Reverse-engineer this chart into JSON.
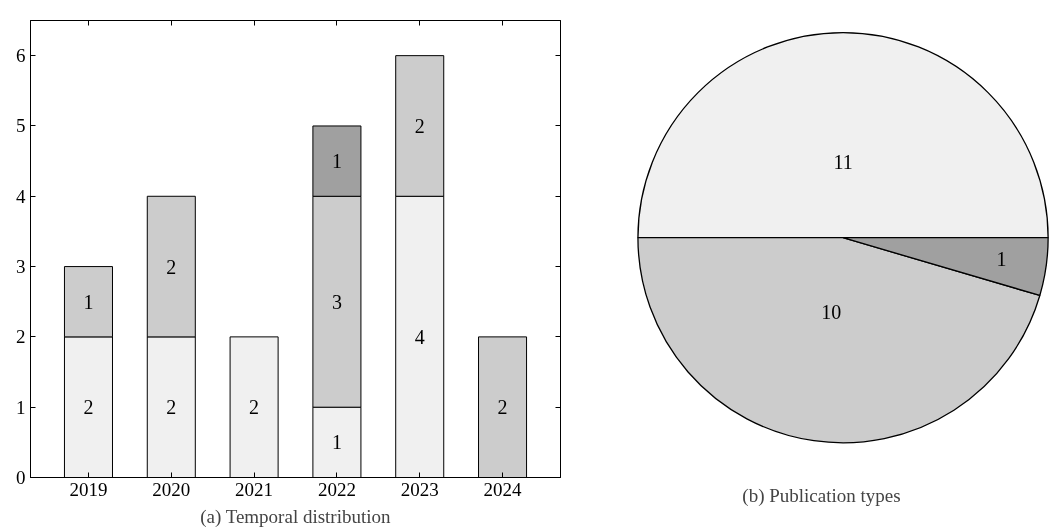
{
  "chart_data": [
    {
      "type": "bar",
      "title": "(a) Temporal distribution",
      "categories": [
        "2019",
        "2020",
        "2021",
        "2022",
        "2023",
        "2024"
      ],
      "stacked": true,
      "data_labels": true,
      "ylim": [
        0,
        6.5
      ],
      "yticks": [
        0,
        1,
        2,
        3,
        4,
        5,
        6
      ],
      "grid": false,
      "series": [
        {
          "color": "#f0f0f0",
          "values": [
            2,
            2,
            2,
            1,
            4,
            null
          ]
        },
        {
          "color": "#cccccc",
          "values": [
            1,
            2,
            null,
            3,
            2,
            2
          ]
        },
        {
          "color": "#a0a0a0",
          "values": [
            null,
            null,
            null,
            1,
            null,
            null
          ]
        }
      ]
    },
    {
      "type": "pie",
      "title": "(b) Publication types",
      "categories": [
        null,
        null,
        null
      ],
      "values": [
        11,
        10,
        1
      ],
      "colors": [
        "#f0f0f0",
        "#cccccc",
        "#a0a0a0"
      ],
      "data_labels": true
    }
  ]
}
